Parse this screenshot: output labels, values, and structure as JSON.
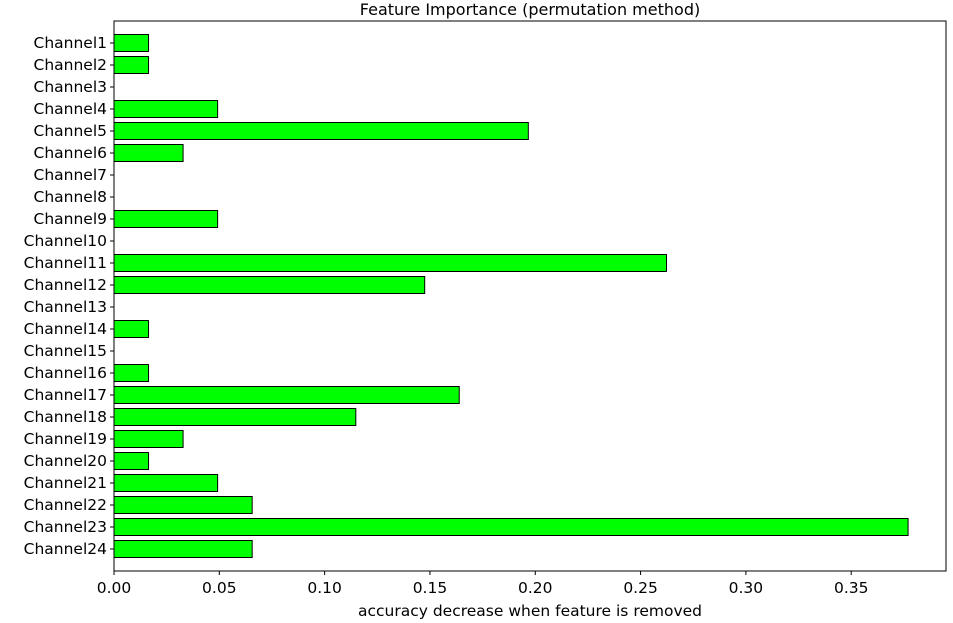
{
  "chart_data": {
    "type": "bar",
    "orientation": "horizontal",
    "title": "Feature Importance (permutation method)",
    "xlabel": "accuracy decrease when feature is removed",
    "ylabel": "",
    "xlim": [
      0,
      0.395
    ],
    "xticks": [
      0.0,
      0.05,
      0.1,
      0.15,
      0.2,
      0.25,
      0.3,
      0.35
    ],
    "xtick_labels": [
      "0.00",
      "0.05",
      "0.10",
      "0.15",
      "0.20",
      "0.25",
      "0.30",
      "0.35"
    ],
    "grid": false,
    "bar_color": "#00ff00",
    "bar_edge_color": "#000000",
    "categories": [
      "Channel1",
      "Channel2",
      "Channel3",
      "Channel4",
      "Channel5",
      "Channel6",
      "Channel7",
      "Channel8",
      "Channel9",
      "Channel10",
      "Channel11",
      "Channel12",
      "Channel13",
      "Channel14",
      "Channel15",
      "Channel16",
      "Channel17",
      "Channel18",
      "Channel19",
      "Channel20",
      "Channel21",
      "Channel22",
      "Channel23",
      "Channel24"
    ],
    "values": [
      0.0164,
      0.0164,
      0.0,
      0.0492,
      0.1967,
      0.0328,
      0.0,
      0.0,
      0.0492,
      0.0,
      0.2623,
      0.1475,
      0.0,
      0.0164,
      0.0,
      0.0164,
      0.1639,
      0.1148,
      0.0328,
      0.0164,
      0.0492,
      0.0656,
      0.377,
      0.0656
    ]
  }
}
